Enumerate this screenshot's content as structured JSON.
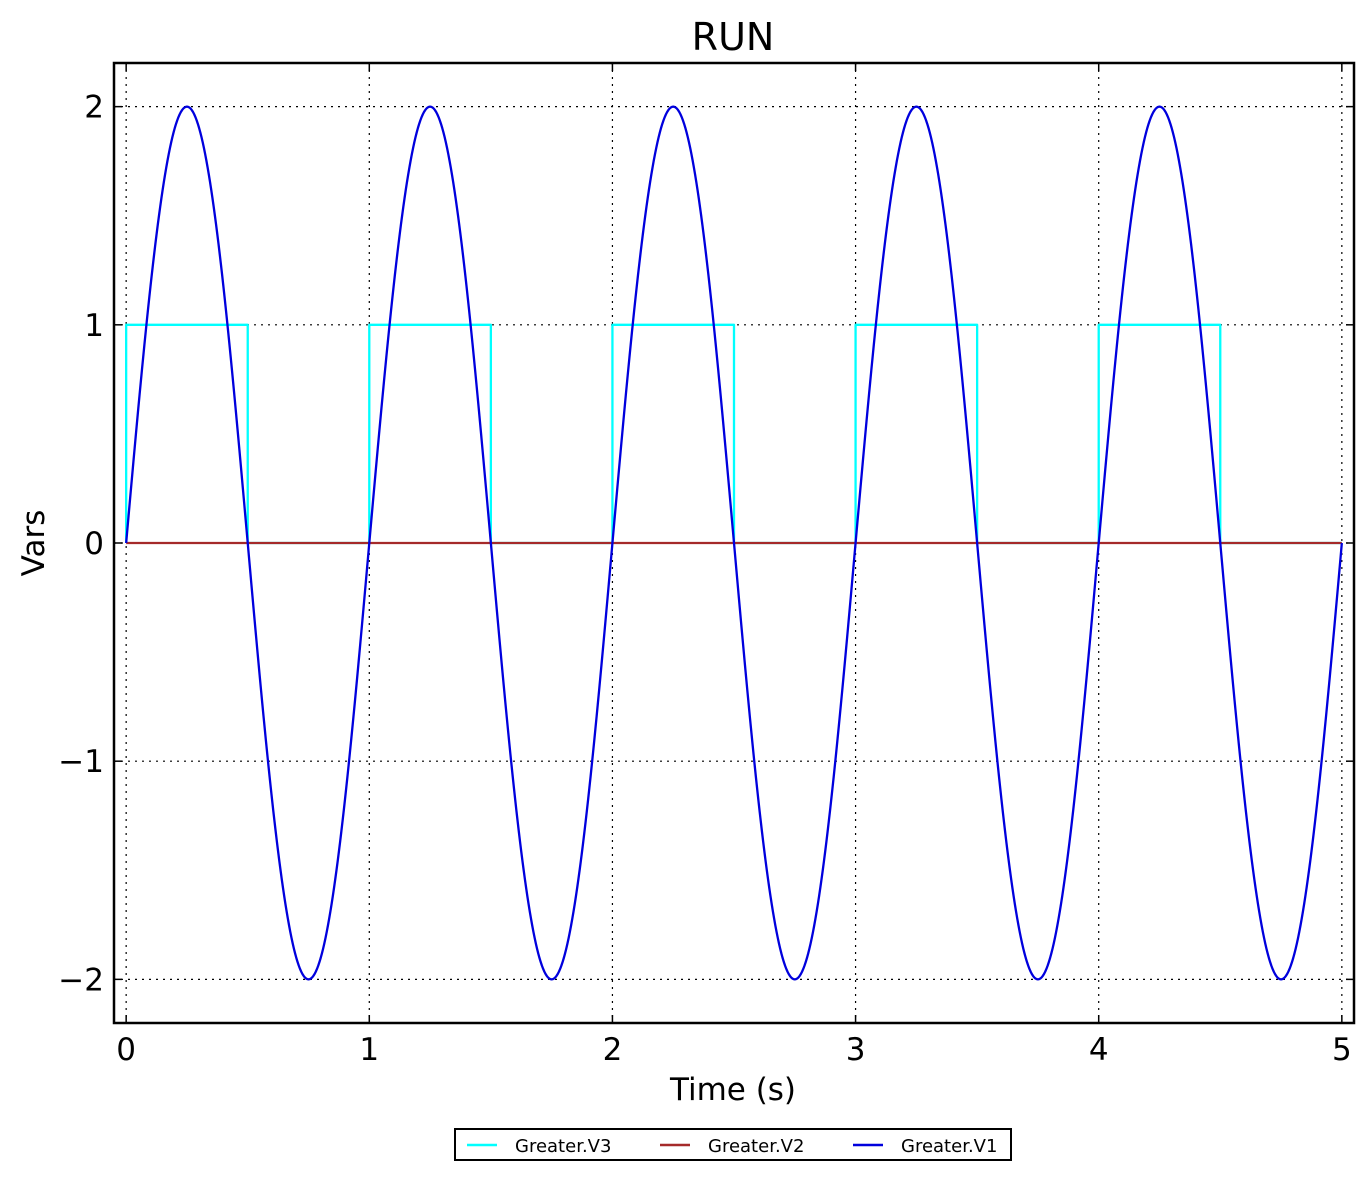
{
  "chart_data": {
    "type": "line",
    "title": "RUN",
    "xlabel": "Time (s)",
    "ylabel": "Vars",
    "xlim": [
      -0.05,
      5.05
    ],
    "ylim": [
      -2.2,
      2.2
    ],
    "xticks": [
      0,
      1,
      2,
      3,
      4,
      5
    ],
    "xtick_labels": [
      "0",
      "1",
      "2",
      "3",
      "4",
      "5"
    ],
    "yticks": [
      2,
      1,
      0,
      -1,
      -2
    ],
    "ytick_labels": [
      "2",
      "1",
      "0",
      "−1",
      "−2"
    ],
    "grid": true,
    "legend_position": "bottom-center",
    "series": [
      {
        "name": "Greater.V3",
        "color": "#00ffff",
        "x": [
          0,
          0,
          0.5,
          0.5,
          1,
          1,
          1.5,
          1.5,
          2,
          2,
          2.5,
          2.5,
          3,
          3,
          3.5,
          3.5,
          4,
          4,
          4.5,
          4.5,
          5
        ],
        "y": [
          0,
          1,
          1,
          0,
          0,
          1,
          1,
          0,
          0,
          1,
          1,
          0,
          0,
          1,
          1,
          0,
          0,
          1,
          1,
          0,
          0
        ]
      },
      {
        "name": "Greater.V2",
        "color": "#a52a2a",
        "x": [
          0,
          5
        ],
        "y": [
          0,
          0
        ]
      },
      {
        "name": "Greater.V1",
        "color": "#0000dd",
        "x": [
          0,
          0.25,
          0.5,
          0.75,
          1,
          1.25,
          1.5,
          1.75,
          2,
          2.25,
          2.5,
          2.75,
          3,
          3.25,
          3.5,
          3.75,
          4,
          4.25,
          4.5,
          4.75,
          5
        ],
        "y": [
          0,
          2,
          0,
          -2,
          0,
          2,
          0,
          -2,
          0,
          2,
          0,
          -2,
          0,
          2,
          0,
          -2,
          0,
          2,
          0,
          -2,
          0
        ]
      }
    ]
  }
}
